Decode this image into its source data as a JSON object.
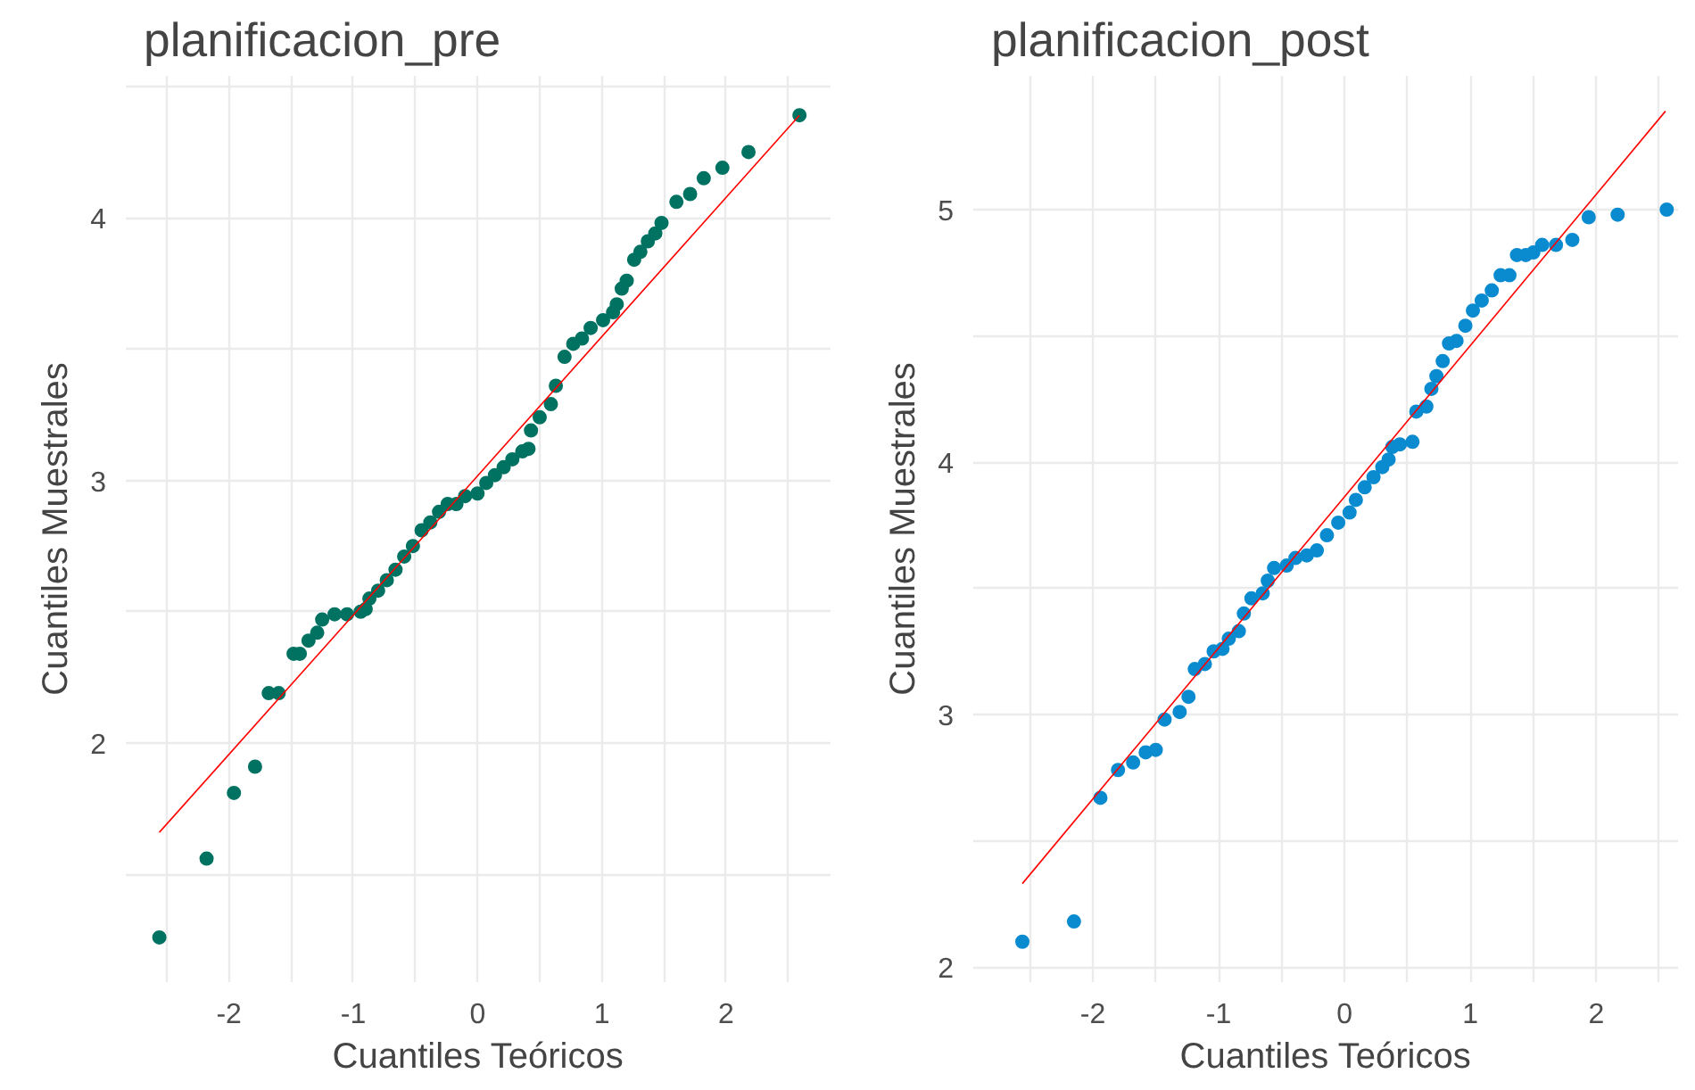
{
  "chart_data": [
    {
      "type": "scatter",
      "title": "planificacion_pre",
      "xlabel": "Cuantiles Teóricos",
      "ylabel": "Cuantiles Muestrales",
      "grid": true,
      "xlim": [
        -2.83,
        2.84
      ],
      "ylim": [
        1.09,
        4.54
      ],
      "xticks": [
        {
          "value": -2.5,
          "label": null
        },
        -2,
        {
          "value": -1.5,
          "label": null
        },
        -1,
        {
          "value": -0.5,
          "label": null
        },
        0,
        {
          "value": 0.5,
          "label": null
        },
        1,
        {
          "value": 1.5,
          "label": null
        },
        2,
        {
          "value": 2.5,
          "label": null
        }
      ],
      "yticks": [
        {
          "value": 1.5,
          "label": null
        },
        2,
        {
          "value": 2.5,
          "label": null
        },
        3,
        {
          "value": 3.5,
          "label": null
        },
        4,
        {
          "value": 4.5,
          "label": null
        }
      ],
      "series": [
        {
          "color": "#007262",
          "marker": "circle",
          "x": [
            -2.56,
            -2.18,
            -1.96,
            -1.79,
            -1.68,
            -1.6,
            -1.48,
            -1.43,
            -1.36,
            -1.29,
            -1.25,
            -1.15,
            -1.05,
            -0.94,
            -0.9,
            -0.87,
            -0.8,
            -0.73,
            -0.66,
            -0.59,
            -0.52,
            -0.45,
            -0.38,
            -0.31,
            -0.24,
            -0.17,
            -0.1,
            0.0,
            0.07,
            0.14,
            0.21,
            0.28,
            0.36,
            0.41,
            0.43,
            0.5,
            0.59,
            0.63,
            0.7,
            0.77,
            0.84,
            0.91,
            1.01,
            1.09,
            1.12,
            1.16,
            1.2,
            1.26,
            1.31,
            1.37,
            1.43,
            1.48,
            1.6,
            1.71,
            1.82,
            1.97,
            2.18,
            2.59
          ],
          "values": [
            1.26,
            1.56,
            1.81,
            1.91,
            2.19,
            2.19,
            2.34,
            2.34,
            2.39,
            2.42,
            2.47,
            2.49,
            2.49,
            2.5,
            2.51,
            2.55,
            2.58,
            2.62,
            2.66,
            2.71,
            2.75,
            2.81,
            2.84,
            2.88,
            2.91,
            2.91,
            2.94,
            2.95,
            2.99,
            3.02,
            3.05,
            3.08,
            3.11,
            3.12,
            3.19,
            3.24,
            3.29,
            3.36,
            3.47,
            3.52,
            3.54,
            3.58,
            3.61,
            3.64,
            3.67,
            3.73,
            3.76,
            3.84,
            3.87,
            3.91,
            3.94,
            3.98,
            4.06,
            4.09,
            4.15,
            4.19,
            4.25,
            4.39
          ]
        },
        {
          "type": "line",
          "marker": "none",
          "color": "#ff0000",
          "x": [
            -2.56,
            2.59
          ],
          "values": [
            1.66,
            4.39
          ]
        }
      ]
    },
    {
      "type": "scatter",
      "title": "planificacion_post",
      "xlabel": "Cuantiles Teóricos",
      "ylabel": "Cuantiles Muestrales",
      "grid": true,
      "xlim": [
        -2.95,
        2.65
      ],
      "ylim": [
        1.94,
        5.53
      ],
      "xticks": [
        {
          "value": -2.5,
          "label": null
        },
        -2,
        {
          "value": -1.5,
          "label": null
        },
        -1,
        {
          "value": -0.5,
          "label": null
        },
        0,
        {
          "value": 0.5,
          "label": null
        },
        1,
        {
          "value": 1.5,
          "label": null
        },
        2,
        {
          "value": 2.5,
          "label": null
        }
      ],
      "yticks": [
        2,
        {
          "value": 2.5,
          "label": null
        },
        3,
        {
          "value": 3.5,
          "label": null
        },
        4,
        {
          "value": 4.5,
          "label": null
        },
        5
      ],
      "series": [
        {
          "color": "#0a8bd0",
          "marker": "circle",
          "x": [
            -2.56,
            -2.15,
            -1.94,
            -1.8,
            -1.68,
            -1.58,
            -1.5,
            -1.43,
            -1.31,
            -1.24,
            -1.19,
            -1.11,
            -1.04,
            -0.97,
            -0.92,
            -0.84,
            -0.8,
            -0.74,
            -0.65,
            -0.61,
            -0.56,
            -0.46,
            -0.39,
            -0.3,
            -0.22,
            -0.14,
            -0.05,
            0.04,
            0.09,
            0.16,
            0.23,
            0.3,
            0.35,
            0.38,
            0.44,
            0.54,
            0.57,
            0.65,
            0.69,
            0.73,
            0.78,
            0.83,
            0.89,
            0.96,
            1.02,
            1.09,
            1.17,
            1.24,
            1.31,
            1.37,
            1.44,
            1.5,
            1.57,
            1.68,
            1.81,
            1.94,
            2.17,
            2.56
          ],
          "values": [
            2.1,
            2.18,
            2.67,
            2.78,
            2.81,
            2.85,
            2.86,
            2.98,
            3.01,
            3.07,
            3.18,
            3.2,
            3.25,
            3.26,
            3.3,
            3.33,
            3.4,
            3.46,
            3.48,
            3.53,
            3.58,
            3.59,
            3.62,
            3.63,
            3.65,
            3.71,
            3.76,
            3.8,
            3.85,
            3.9,
            3.94,
            3.98,
            4.01,
            4.06,
            4.07,
            4.08,
            4.2,
            4.22,
            4.29,
            4.34,
            4.4,
            4.47,
            4.48,
            4.54,
            4.6,
            4.64,
            4.68,
            4.74,
            4.74,
            4.82,
            4.82,
            4.83,
            4.86,
            4.86,
            4.88,
            4.97,
            4.98,
            5.0
          ]
        },
        {
          "type": "line",
          "marker": "none",
          "color": "#ff0000",
          "x": [
            -2.56,
            2.55
          ],
          "values": [
            2.33,
            5.39
          ]
        }
      ]
    }
  ]
}
